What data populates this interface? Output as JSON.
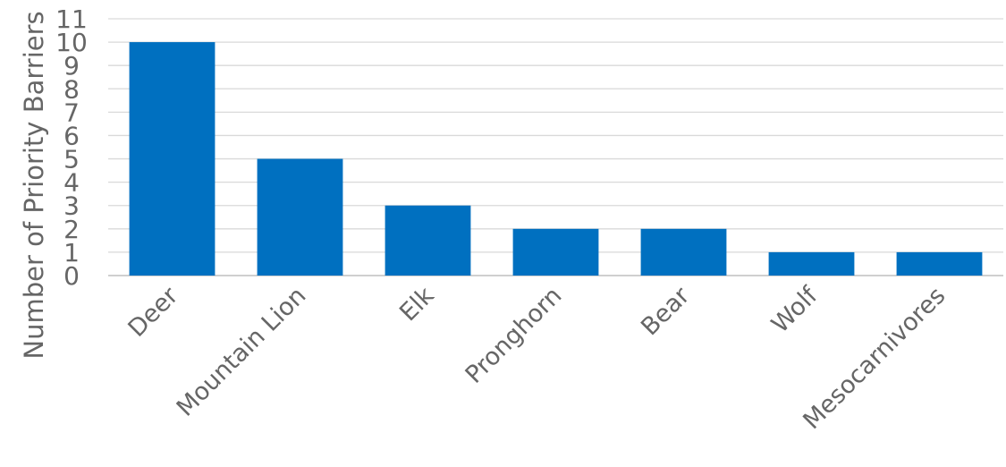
{
  "chart_data": {
    "type": "bar",
    "title": "",
    "xlabel": "",
    "ylabel": "Number of Priority Barriers",
    "categories": [
      "Deer",
      "Mountain Lion",
      "Elk",
      "Pronghorn",
      "Bear",
      "Wolf",
      "Mesocarnivores"
    ],
    "series": [
      {
        "values": [
          10,
          5,
          3,
          2,
          2,
          1,
          1
        ]
      }
    ],
    "ylim": [
      0,
      11
    ],
    "yticks": [
      0,
      1,
      2,
      3,
      4,
      5,
      6,
      7,
      8,
      9,
      10,
      11
    ],
    "grid": true,
    "legend": "none",
    "colors": {
      "bar": "#0070C0",
      "grid": "#D9D9D9",
      "text": "#666666"
    }
  }
}
